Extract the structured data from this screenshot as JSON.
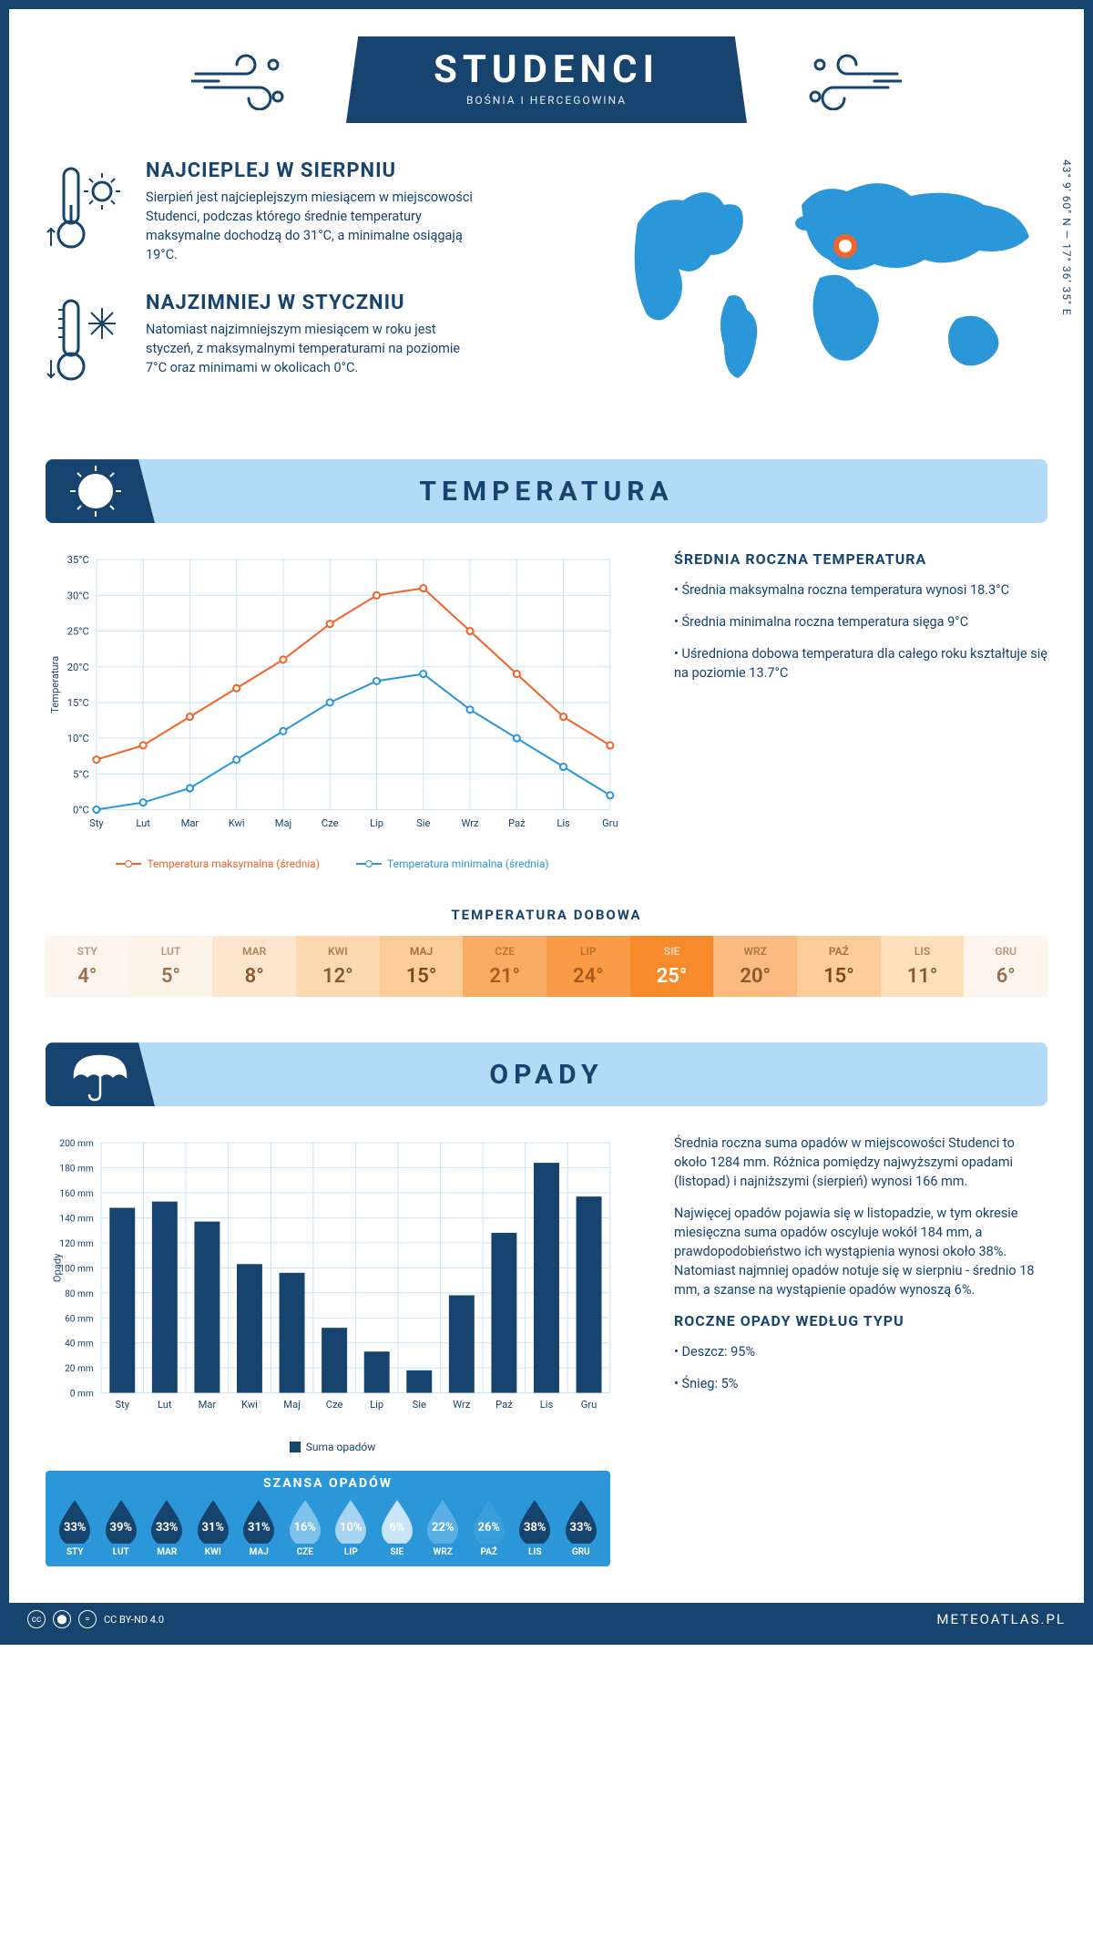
{
  "header": {
    "title": "STUDENCI",
    "subtitle": "BOŚNIA I HERCEGOWINA"
  },
  "coords": "43° 9' 60\" N — 17° 36' 35\" E",
  "facts": {
    "hot": {
      "title": "NAJCIEPLEJ W SIERPNIU",
      "text": "Sierpień jest najcieplejszym miesiącem w miejscowości Studenci, podczas którego średnie temperatury maksymalne dochodzą do 31°C, a minimalne osiągają 19°C."
    },
    "cold": {
      "title": "NAJZIMNIEJ W STYCZNIU",
      "text": "Natomiast najzimniejszym miesiącem w roku jest styczeń, z maksymalnymi temperaturami na poziomie 7°C oraz minimami w okolicach 0°C."
    }
  },
  "sections": {
    "temp_title": "TEMPERATURA",
    "precip_title": "OPADY"
  },
  "temp_chart": {
    "type": "line",
    "months": [
      "Sty",
      "Lut",
      "Mar",
      "Kwi",
      "Maj",
      "Cze",
      "Lip",
      "Sie",
      "Wrz",
      "Paź",
      "Lis",
      "Gru"
    ],
    "max_series": [
      7,
      9,
      13,
      17,
      21,
      26,
      30,
      31,
      25,
      19,
      13,
      9
    ],
    "min_series": [
      0,
      1,
      3,
      7,
      11,
      15,
      18,
      19,
      14,
      10,
      6,
      2
    ],
    "max_color": "#f4632a",
    "min_color": "#2b97d8",
    "ylim": [
      0,
      35
    ],
    "ytick_step": 5,
    "ylabel": "Temperatura",
    "legend_max": "Temperatura maksymalna (średnia)",
    "legend_min": "Temperatura minimalna (średnia)",
    "grid_color": "#cde4f5",
    "background": "#ffffff"
  },
  "temp_side": {
    "heading": "ŚREDNIA ROCZNA TEMPERATURA",
    "b1": "• Średnia maksymalna roczna temperatura wynosi 18.3°C",
    "b2": "• Średnia minimalna roczna temperatura sięga 9°C",
    "b3": "• Uśredniona dobowa temperatura dla całego roku kształtuje się na poziomie 13.7°C"
  },
  "daily": {
    "title": "TEMPERATURA DOBOWA",
    "months": [
      "STY",
      "LUT",
      "MAR",
      "KWI",
      "MAJ",
      "CZE",
      "LIP",
      "SIE",
      "WRZ",
      "PAŹ",
      "LIS",
      "GRU"
    ],
    "values": [
      "4°",
      "5°",
      "8°",
      "12°",
      "15°",
      "21°",
      "24°",
      "25°",
      "20°",
      "15°",
      "11°",
      "6°"
    ],
    "bg_colors": [
      "#fef6ee",
      "#fef3e8",
      "#fde6cd",
      "#fdd9b2",
      "#fccd99",
      "#faac64",
      "#f99b47",
      "#f78a2a",
      "#fbba7f",
      "#fccd99",
      "#fde0b9",
      "#fef6ee"
    ],
    "text_colors": [
      "#967050",
      "#967050",
      "#8a582f",
      "#8a582f",
      "#7d471c",
      "#a85a1d",
      "#a85a1d",
      "#ffffff",
      "#8a582f",
      "#7d471c",
      "#8a582f",
      "#967050"
    ]
  },
  "precip_chart": {
    "type": "bar",
    "months": [
      "Sty",
      "Lut",
      "Mar",
      "Kwi",
      "Maj",
      "Cze",
      "Lip",
      "Sie",
      "Wrz",
      "Paź",
      "Lis",
      "Gru"
    ],
    "values": [
      148,
      153,
      137,
      103,
      96,
      52,
      33,
      18,
      78,
      128,
      184,
      157
    ],
    "ylim": [
      0,
      200
    ],
    "ytick_step": 20,
    "bar_color": "#17436f",
    "ylabel": "Opady",
    "legend": "Suma opadów",
    "grid_color": "#cde4f5"
  },
  "precip_side": {
    "p1": "Średnia roczna suma opadów w miejscowości Studenci to około 1284 mm. Różnica pomiędzy najwyższymi opadami (listopad) i najniższymi (sierpień) wynosi 166 mm.",
    "p2": "Najwięcej opadów pojawia się w listopadzie, w tym okresie miesięczna suma opadów oscyluje wokół 184 mm, a prawdopodobieństwo ich wystąpienia wynosi około 38%. Natomiast najmniej opadów notuje się w sierpniu - średnio 18 mm, a szanse na wystąpienie opadów wynoszą 6%.",
    "type_heading": "ROCZNE OPADY WEDŁUG TYPU",
    "type_rain": "• Deszcz: 95%",
    "type_snow": "• Śnieg: 5%"
  },
  "szansa": {
    "title": "SZANSA OPADÓW",
    "months": [
      "STY",
      "LUT",
      "MAR",
      "KWI",
      "MAJ",
      "CZE",
      "LIP",
      "SIE",
      "WRZ",
      "PAŹ",
      "LIS",
      "GRU"
    ],
    "pct": [
      "33%",
      "39%",
      "33%",
      "31%",
      "31%",
      "16%",
      "10%",
      "6%",
      "22%",
      "26%",
      "38%",
      "33%"
    ],
    "fill_colors": [
      "#17436f",
      "#17436f",
      "#17436f",
      "#17436f",
      "#17436f",
      "#7fc2ec",
      "#a7d5f1",
      "#c8e4f6",
      "#5ab0e4",
      "#3a9edb",
      "#17436f",
      "#17436f"
    ]
  },
  "footer": {
    "license": "CC BY-ND 4.0",
    "site": "METEOATLAS.PL"
  }
}
